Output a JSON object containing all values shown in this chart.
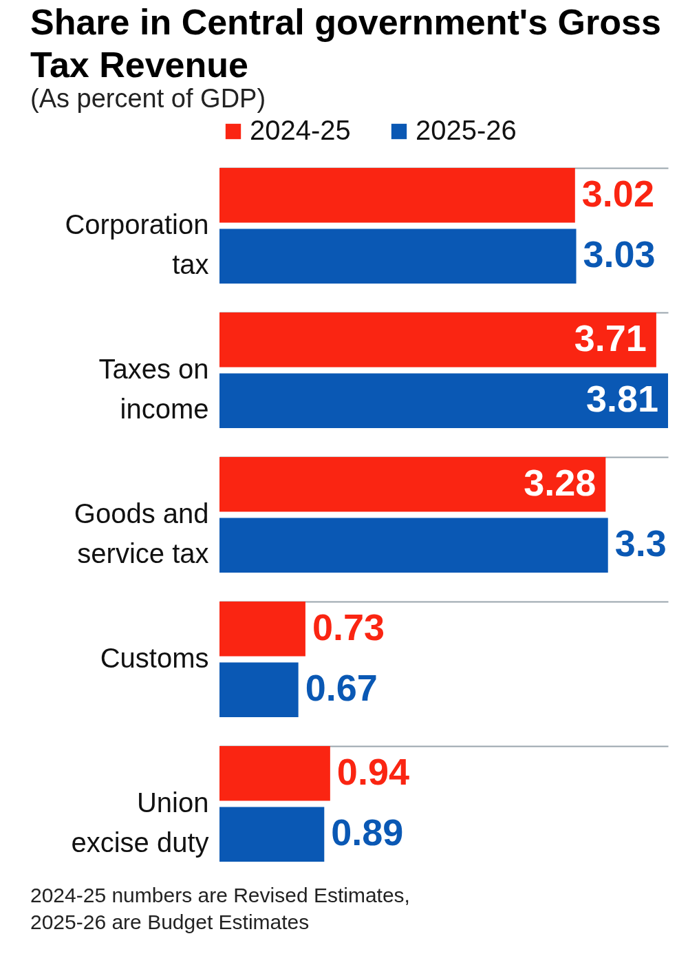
{
  "chart_data": {
    "type": "bar",
    "orientation": "horizontal",
    "title": "Share in Central government's Gross Tax Revenue",
    "subtitle": "(As percent of GDP)",
    "categories": [
      "Corporation tax",
      "Taxes on income",
      "Goods and service tax",
      "Customs",
      "Union excise duty"
    ],
    "series": [
      {
        "name": "2024-25",
        "color": "#fa2512",
        "values": [
          3.02,
          3.71,
          3.28,
          0.73,
          0.94
        ]
      },
      {
        "name": "2025-26",
        "color": "#0a58b4",
        "values": [
          3.03,
          3.81,
          3.3,
          0.67,
          0.89
        ]
      }
    ],
    "data_labels": true,
    "legend": "top left",
    "grid": "y",
    "annotations": [
      "2024-25 numbers are Revised Estimates, 2025-26 are Budget Estimates"
    ]
  }
}
